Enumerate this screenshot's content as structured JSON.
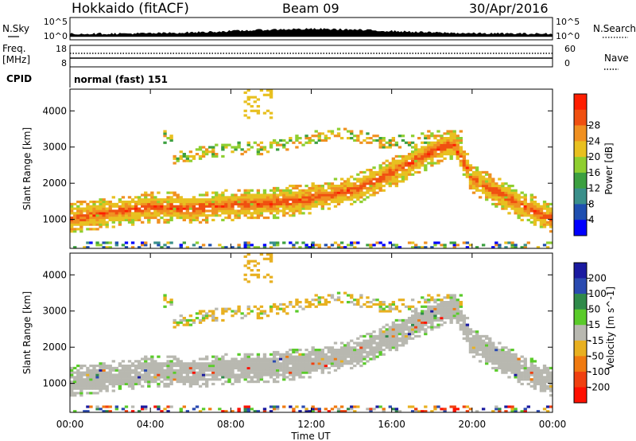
{
  "header": {
    "station": "Hokkaido (fitACF)",
    "beam": "Beam 09",
    "date": "30/Apr/2016"
  },
  "strip": {
    "nsky_label": "N.Sky",
    "nsearch_label": "N.Search",
    "noise_ticks": [
      "10^5",
      "10^0"
    ],
    "freq_label": "Freq.",
    "freq_unit": "[MHz]",
    "freq_ticks": [
      "18",
      "8"
    ],
    "nave_label": "Nave",
    "nave_ticks": [
      "60",
      "0"
    ],
    "cpid_label": "CPID",
    "cpid_value": "normal (fast) 151"
  },
  "colors": {
    "power": [
      "#0000ff",
      "#1f4fb0",
      "#3a8f8a",
      "#3ca040",
      "#8fcf30",
      "#e8c020",
      "#f09020",
      "#f05010",
      "#ff1e00"
    ],
    "velocity": [
      "#1a1aa0",
      "#2a4ab0",
      "#2f8a4a",
      "#5acb2a",
      "#b8b8b0",
      "#e8b020",
      "#f07a10",
      "#f04010",
      "#ff1000"
    ]
  },
  "chart_data": [
    {
      "type": "heatmap",
      "name": "power",
      "ylabel": "Slant Range [km]",
      "xlabel": "",
      "ylim": [
        200,
        4600
      ],
      "yticks": [
        "1000",
        "2000",
        "3000",
        "4000"
      ],
      "colorbar_label": "Power [dB]",
      "colorbar_ticks": [
        "4",
        "8",
        "12",
        "16",
        "20",
        "24",
        "28"
      ],
      "main_echo_range_km": [
        [
          0,
          1050
        ],
        [
          2,
          1200
        ],
        [
          4,
          1350
        ],
        [
          6,
          1300
        ],
        [
          8,
          1400
        ],
        [
          10,
          1450
        ],
        [
          12,
          1600
        ],
        [
          14,
          1800
        ],
        [
          16,
          2300
        ],
        [
          18,
          2900
        ],
        [
          19,
          3100
        ],
        [
          20,
          2100
        ],
        [
          22,
          1500
        ],
        [
          24,
          1000
        ]
      ],
      "upper_echo_range_km": [
        [
          5,
          2700
        ],
        [
          7,
          2900
        ],
        [
          10,
          3000
        ],
        [
          13,
          3400
        ],
        [
          16,
          3100
        ],
        [
          18,
          3300
        ]
      ]
    },
    {
      "type": "heatmap",
      "name": "velocity",
      "ylabel": "Slant Range [km]",
      "xlabel": "Time UT",
      "ylim": [
        200,
        4600
      ],
      "yticks": [
        "1000",
        "2000",
        "3000",
        "4000"
      ],
      "colorbar_label": "Velocity [m s^-1]",
      "colorbar_ticks": [
        "200",
        "100",
        "50",
        "15",
        "-15",
        "-50",
        "-100",
        "-200"
      ],
      "xticks": [
        "00:00",
        "04:00",
        "08:00",
        "12:00",
        "16:00",
        "20:00",
        "00:00"
      ]
    }
  ]
}
